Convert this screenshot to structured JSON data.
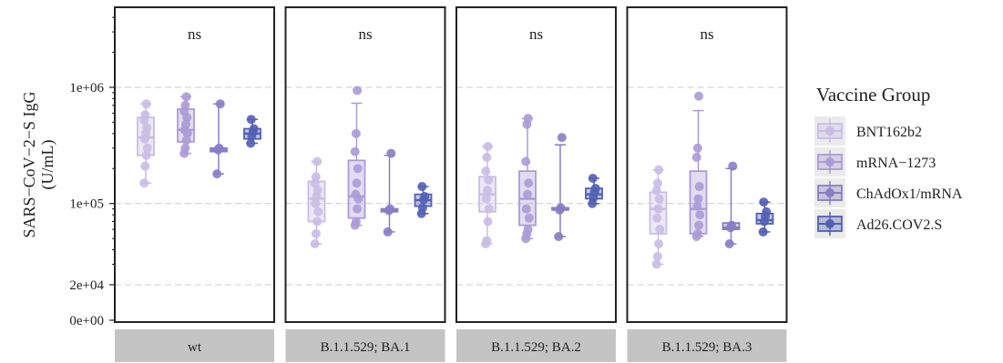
{
  "chart_data": {
    "type": "box",
    "ylabel_line1": "SARS−CoV−2−S IgG",
    "ylabel_line2": "(U/mL)",
    "ylim": [
      0,
      5000000
    ],
    "y_scale": "log",
    "y_ticks": [
      "0e+00",
      "2e+04",
      "1e+05",
      "1e+06"
    ],
    "y_tick_values": [
      0,
      20000,
      100000,
      1000000
    ],
    "grid": true,
    "legend_title": "Vaccine Group",
    "legend_position": "right",
    "groups": [
      {
        "name": "BNT162b2",
        "color": "#c9bde6"
      },
      {
        "name": "mRNA−1273",
        "color": "#ab9bd6"
      },
      {
        "name": "ChAdOx1/mRNA",
        "color": "#8a7dc4"
      },
      {
        "name": "Ad26.COV2.S",
        "color": "#5260b4"
      }
    ],
    "panels": [
      {
        "label": "wt",
        "annotation": "ns",
        "series": [
          {
            "group": "BNT162b2",
            "stats": [
              150000,
              260000,
              370000,
              550000,
              720000
            ],
            "points": [
              150000,
              210000,
              260000,
              300000,
              360000,
              400000,
              450000,
              520000,
              580000,
              720000
            ]
          },
          {
            "group": "mRNA−1273",
            "stats": [
              270000,
              340000,
              430000,
              650000,
              830000
            ],
            "points": [
              270000,
              300000,
              350000,
              400000,
              430000,
              480000,
              550000,
              620000,
              700000,
              830000
            ]
          },
          {
            "group": "ChAdOx1/mRNA",
            "stats": [
              180000,
              280000,
              290000,
              300000,
              720000
            ],
            "points": [
              180000,
              290000,
              300000,
              720000
            ]
          },
          {
            "group": "Ad26.COV2.S",
            "stats": [
              330000,
              360000,
              400000,
              440000,
              530000
            ],
            "points": [
              330000,
              380000,
              410000,
              440000,
              530000
            ]
          }
        ]
      },
      {
        "label": "B.1.1.529; BA.1",
        "annotation": "ns",
        "series": [
          {
            "group": "BNT162b2",
            "stats": [
              45000,
              70000,
              110000,
              155000,
              230000
            ],
            "points": [
              45000,
              55000,
              70000,
              85000,
              100000,
              115000,
              130000,
              150000,
              170000,
              230000
            ]
          },
          {
            "group": "mRNA−1273",
            "stats": [
              65000,
              75000,
              115000,
              235000,
              730000
            ],
            "points": [
              65000,
              70000,
              90000,
              110000,
              120000,
              150000,
              200000,
              280000,
              400000,
              940000
            ]
          },
          {
            "group": "ChAdOx1/mRNA",
            "stats": [
              57000,
              85000,
              87000,
              90000,
              260000
            ],
            "points": [
              57000,
              87000,
              90000,
              270000
            ]
          },
          {
            "group": "Ad26.COV2.S",
            "stats": [
              82000,
              95000,
              107000,
              120000,
              140000
            ],
            "points": [
              82000,
              92000,
              108000,
              115000,
              140000
            ]
          }
        ]
      },
      {
        "label": "B.1.1.529; BA.2",
        "annotation": "ns",
        "series": [
          {
            "group": "BNT162b2",
            "stats": [
              45000,
              85000,
              120000,
              170000,
              310000
            ],
            "points": [
              45000,
              48000,
              70000,
              90000,
              110000,
              130000,
              160000,
              190000,
              250000,
              310000
            ]
          },
          {
            "group": "mRNA−1273",
            "stats": [
              50000,
              65000,
              110000,
              190000,
              540000
            ],
            "points": [
              50000,
              55000,
              60000,
              75000,
              90000,
              120000,
              150000,
              230000,
              480000,
              540000
            ]
          },
          {
            "group": "ChAdOx1/mRNA",
            "stats": [
              52000,
              88000,
              90000,
              92000,
              320000
            ],
            "points": [
              52000,
              88000,
              92000,
              370000
            ]
          },
          {
            "group": "Ad26.COV2.S",
            "stats": [
              100000,
              110000,
              120000,
              135000,
              165000
            ],
            "points": [
              100000,
              112000,
              125000,
              135000,
              165000
            ]
          }
        ]
      },
      {
        "label": "B.1.1.529; BA.3",
        "annotation": "ns",
        "series": [
          {
            "group": "BNT162b2",
            "stats": [
              30000,
              55000,
              90000,
              125000,
              195000
            ],
            "points": [
              30000,
              35000,
              45000,
              60000,
              75000,
              90000,
              110000,
              130000,
              150000,
              195000
            ]
          },
          {
            "group": "mRNA−1273",
            "stats": [
              52000,
              55000,
              90000,
              190000,
              630000
            ],
            "points": [
              52000,
              55000,
              65000,
              80000,
              95000,
              110000,
              140000,
              250000,
              300000,
              840000
            ]
          },
          {
            "group": "ChAdOx1/mRNA",
            "stats": [
              45000,
              60000,
              62000,
              68000,
              200000
            ],
            "points": [
              45000,
              62000,
              65000,
              210000
            ]
          },
          {
            "group": "Ad26.COV2.S",
            "stats": [
              57000,
              67000,
              72000,
              82000,
              103000
            ],
            "points": [
              57000,
              70000,
              78000,
              85000,
              103000
            ]
          }
        ]
      }
    ]
  }
}
